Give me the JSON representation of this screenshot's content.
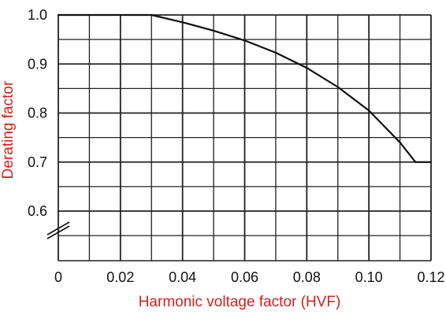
{
  "chart_data": {
    "type": "line",
    "title": "",
    "xlabel": "Harmonic voltage factor (HVF)",
    "ylabel": "Derating factor",
    "xlim": [
      0,
      0.12
    ],
    "ylim": [
      0.55,
      1.0
    ],
    "x_ticks": [
      "0",
      "0.02",
      "0.04",
      "0.06",
      "0.08",
      "0.10",
      "0.12"
    ],
    "y_ticks": [
      "1.0",
      "0.9",
      "0.8",
      "0.7",
      "0.6"
    ],
    "y_axis_break": true,
    "grid": true,
    "series": [
      {
        "x": [
          0.0,
          0.03,
          0.04,
          0.05,
          0.06,
          0.07,
          0.08,
          0.09,
          0.1,
          0.11,
          0.115,
          0.12
        ],
        "y": [
          1.0,
          1.0,
          0.985,
          0.968,
          0.948,
          0.923,
          0.892,
          0.853,
          0.805,
          0.74,
          0.7,
          0.7
        ]
      }
    ],
    "colors": {
      "axis_label": "#d42020",
      "line": "#111111",
      "grid": "#222222"
    }
  }
}
